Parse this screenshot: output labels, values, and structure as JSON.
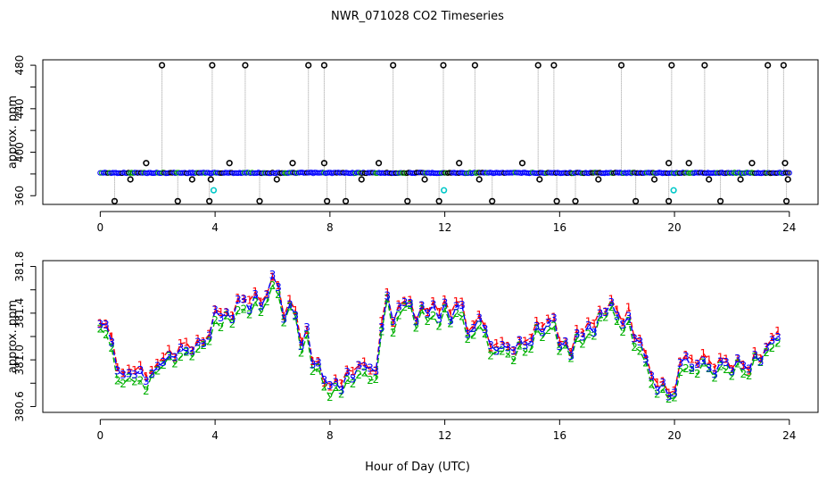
{
  "figure": {
    "title": "NWR_071028  CO2 Timeseries",
    "xlabel": "Hour of Day (UTC)"
  },
  "chart_data": [
    {
      "type": "scatter",
      "panel": "top",
      "title": "NWR_071028  CO2 Timeseries",
      "xlabel": "",
      "ylabel": "approx. ppm",
      "xlim": [
        -2,
        25
      ],
      "ylim": [
        352,
        485
      ],
      "xticks": [
        0,
        4,
        8,
        12,
        16,
        20,
        24
      ],
      "yticks": [
        360,
        400,
        440,
        480
      ],
      "baseline": 381,
      "colors": {
        "black": "#000000",
        "blue": "#0000ff",
        "green": "#00a000",
        "cyan": "#00c8c8",
        "connector": "#999999"
      },
      "spikes_high": [
        2.15,
        3.9,
        5.05,
        7.25,
        7.8,
        10.2,
        11.95,
        13.05,
        15.25,
        15.8,
        18.15,
        19.9,
        21.05,
        23.25,
        23.8
      ],
      "spikes_low": [
        0.5,
        2.7,
        3.8,
        5.55,
        7.9,
        8.55,
        10.7,
        11.8,
        13.65,
        15.9,
        16.55,
        18.65,
        19.8,
        21.6,
        23.9
      ],
      "mid_points": [
        {
          "x": 1.6,
          "y": 390
        },
        {
          "x": 4.5,
          "y": 390
        },
        {
          "x": 6.7,
          "y": 390
        },
        {
          "x": 7.8,
          "y": 390
        },
        {
          "x": 9.7,
          "y": 390
        },
        {
          "x": 12.5,
          "y": 390
        },
        {
          "x": 14.7,
          "y": 390
        },
        {
          "x": 19.8,
          "y": 390
        },
        {
          "x": 20.5,
          "y": 390
        },
        {
          "x": 22.7,
          "y": 390
        },
        {
          "x": 23.85,
          "y": 390
        }
      ],
      "low_points": [
        {
          "x": 1.05,
          "y": 375
        },
        {
          "x": 3.2,
          "y": 375
        },
        {
          "x": 3.85,
          "y": 375
        },
        {
          "x": 6.15,
          "y": 375
        },
        {
          "x": 9.1,
          "y": 375
        },
        {
          "x": 11.3,
          "y": 375
        },
        {
          "x": 13.2,
          "y": 375
        },
        {
          "x": 15.3,
          "y": 375
        },
        {
          "x": 17.35,
          "y": 375
        },
        {
          "x": 19.3,
          "y": 375
        },
        {
          "x": 21.2,
          "y": 375
        },
        {
          "x": 22.3,
          "y": 375
        },
        {
          "x": 23.95,
          "y": 375
        }
      ],
      "cyan_points": [
        {
          "x": 3.95,
          "y": 365
        },
        {
          "x": 11.97,
          "y": 365
        },
        {
          "x": 19.97,
          "y": 365
        }
      ]
    },
    {
      "type": "line",
      "panel": "bottom",
      "title": "",
      "xlabel": "Hour of Day (UTC)",
      "ylabel": "approx. ppm",
      "xlim": [
        -2,
        25
      ],
      "ylim": [
        380.55,
        381.85
      ],
      "xticks": [
        0,
        4,
        8,
        12,
        16,
        20,
        24
      ],
      "yticks": [
        380.6,
        381.0,
        381.4,
        381.8
      ],
      "ytick_labels": [
        "380.6",
        "381.0",
        "381.4",
        "381.8"
      ],
      "markers": [
        "1",
        "2",
        "3"
      ],
      "series": [
        {
          "name": "1",
          "color": "#ff0000",
          "offset": 0.03
        },
        {
          "name": "2",
          "color": "#00b000",
          "offset": -0.05
        },
        {
          "name": "3",
          "color": "#0000ff",
          "offset": 0.0
        }
      ],
      "x": [
        0.0,
        0.2,
        0.4,
        0.6,
        0.8,
        1.0,
        1.2,
        1.4,
        1.6,
        1.8,
        2.0,
        2.2,
        2.4,
        2.6,
        2.8,
        3.0,
        3.2,
        3.4,
        3.6,
        3.8,
        4.0,
        4.2,
        4.4,
        4.6,
        4.8,
        5.0,
        5.2,
        5.4,
        5.6,
        5.8,
        6.0,
        6.2,
        6.4,
        6.6,
        6.8,
        7.0,
        7.2,
        7.4,
        7.6,
        7.8,
        8.0,
        8.2,
        8.4,
        8.6,
        8.8,
        9.0,
        9.2,
        9.4,
        9.6,
        9.8,
        10.0,
        10.2,
        10.4,
        10.6,
        10.8,
        11.0,
        11.2,
        11.4,
        11.6,
        11.8,
        12.0,
        12.2,
        12.4,
        12.6,
        12.8,
        13.0,
        13.2,
        13.4,
        13.6,
        13.8,
        14.0,
        14.2,
        14.4,
        14.6,
        14.8,
        15.0,
        15.2,
        15.4,
        15.6,
        15.8,
        16.0,
        16.2,
        16.4,
        16.6,
        16.8,
        17.0,
        17.2,
        17.4,
        17.6,
        17.8,
        18.0,
        18.2,
        18.4,
        18.6,
        18.8,
        19.0,
        19.2,
        19.4,
        19.6,
        19.8,
        20.0,
        20.2,
        20.4,
        20.6,
        20.8,
        21.0,
        21.2,
        21.4,
        21.6,
        21.8,
        22.0,
        22.2,
        22.4,
        22.6,
        22.8,
        23.0,
        23.2,
        23.4,
        23.6
      ],
      "values": [
        381.3,
        381.28,
        381.15,
        380.9,
        380.85,
        380.9,
        380.85,
        380.9,
        380.8,
        380.9,
        380.95,
        381.0,
        381.05,
        381.0,
        381.1,
        381.1,
        381.05,
        381.15,
        381.15,
        381.2,
        381.4,
        381.35,
        381.4,
        381.35,
        381.5,
        381.5,
        381.45,
        381.55,
        381.45,
        381.55,
        381.7,
        381.6,
        381.35,
        381.5,
        381.4,
        381.1,
        381.25,
        380.95,
        380.95,
        380.8,
        380.75,
        380.8,
        380.75,
        380.9,
        380.85,
        380.95,
        380.95,
        380.9,
        380.9,
        381.3,
        381.55,
        381.3,
        381.45,
        381.5,
        381.5,
        381.3,
        381.45,
        381.4,
        381.45,
        381.35,
        381.5,
        381.35,
        381.45,
        381.45,
        381.2,
        381.25,
        381.35,
        381.25,
        381.1,
        381.1,
        381.15,
        381.1,
        381.05,
        381.15,
        381.1,
        381.15,
        381.3,
        381.25,
        381.3,
        381.35,
        381.1,
        381.15,
        381.05,
        381.25,
        381.2,
        381.3,
        381.25,
        381.4,
        381.4,
        381.5,
        381.4,
        381.3,
        381.4,
        381.15,
        381.15,
        381.0,
        380.85,
        380.75,
        380.8,
        380.7,
        380.7,
        380.95,
        381.0,
        380.95,
        380.95,
        381.0,
        380.95,
        380.9,
        381.0,
        380.95,
        380.9,
        381.0,
        380.95,
        380.9,
        381.05,
        381.0,
        381.1,
        381.15,
        381.2
      ]
    }
  ]
}
